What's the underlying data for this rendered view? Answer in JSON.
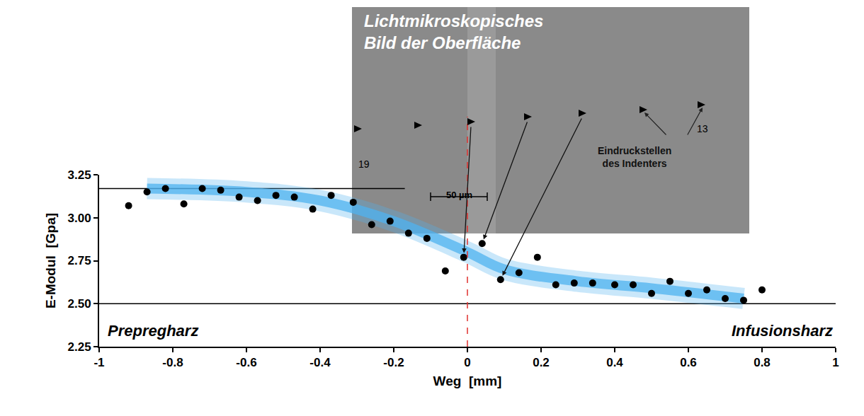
{
  "chart_data": {
    "type": "scatter",
    "x": [
      -0.92,
      -0.87,
      -0.82,
      -0.77,
      -0.72,
      -0.67,
      -0.62,
      -0.57,
      -0.52,
      -0.47,
      -0.42,
      -0.37,
      -0.31,
      -0.26,
      -0.21,
      -0.16,
      -0.11,
      -0.06,
      -0.01,
      0.04,
      0.09,
      0.14,
      0.19,
      0.24,
      0.29,
      0.34,
      0.4,
      0.45,
      0.5,
      0.55,
      0.6,
      0.65,
      0.7,
      0.75,
      0.8
    ],
    "values": [
      3.07,
      3.15,
      3.17,
      3.08,
      3.17,
      3.16,
      3.12,
      3.1,
      3.13,
      3.12,
      3.05,
      3.13,
      3.09,
      2.96,
      2.98,
      2.91,
      2.88,
      2.69,
      2.77,
      2.85,
      2.64,
      2.68,
      2.77,
      2.61,
      2.62,
      2.62,
      2.61,
      2.61,
      2.56,
      2.63,
      2.56,
      2.58,
      2.53,
      2.52,
      2.58
    ],
    "color": "#000000",
    "marker": "circle",
    "xlabel": "Weg  [mm]",
    "ylabel": "E-Modul  [Gpa]",
    "xlim": [
      -1,
      1
    ],
    "xticks": [
      -1,
      -0.8,
      -0.6,
      -0.4,
      -0.2,
      0,
      0.2,
      0.4,
      0.6,
      0.8,
      1
    ],
    "ylim": [
      2.25,
      3.25
    ],
    "yticks": [
      2.25,
      {
        "value": 2.5,
        "label": "2.50"
      },
      2.75,
      {
        "value": 3,
        "label": "3.00"
      },
      3.25
    ],
    "grid": false,
    "band": {
      "x": [
        -0.87,
        -0.6,
        -0.4,
        -0.2,
        0,
        0.1,
        0.3,
        0.5,
        0.75
      ],
      "values": [
        3.17,
        3.15,
        3.1,
        2.98,
        2.8,
        2.7,
        2.63,
        2.59,
        2.53
      ],
      "color": "#4fb3f0"
    },
    "reference_lines": [
      {
        "y": 3.17,
        "x": [
          -1,
          -0.17
        ],
        "color": "#000000"
      },
      {
        "y": 2.5,
        "x": [
          -1,
          1
        ],
        "color": "#000000"
      }
    ],
    "vline": {
      "x": 0,
      "color": "#e0302e",
      "line_style": "dashed"
    },
    "annotations": [
      "Prepregharz",
      "Infusionsharz"
    ],
    "inset": {
      "title": "Lichtmikroskopisches Bild der Oberfläche",
      "labels": [
        "19",
        "13"
      ],
      "scale_bar": "50 µm",
      "note": "Eindruckstellen des Indenters"
    }
  }
}
